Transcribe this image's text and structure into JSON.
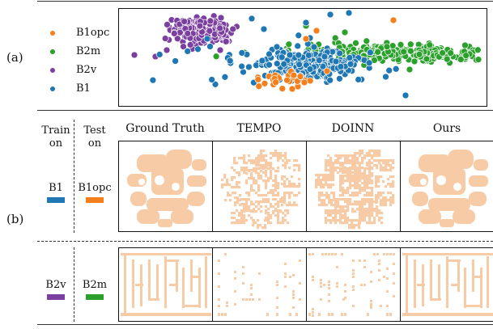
{
  "panel_a": {
    "label": "(a)",
    "legend": [
      {
        "name": "B1opc",
        "color": "#f57f1b"
      },
      {
        "name": "B2m",
        "color": "#2ca02c"
      },
      {
        "name": "B2v",
        "color": "#7b3fa0"
      },
      {
        "name": "B1",
        "color": "#1f77b4"
      }
    ],
    "chart_data": {
      "type": "scatter",
      "title": "",
      "xlabel": "",
      "ylabel": "",
      "legend_position": "left",
      "axes_ticks": false,
      "series": [
        {
          "name": "B1opc",
          "color": "#f57f1b",
          "description_region": "small cluster below-center and few isolated points"
        },
        {
          "name": "B2m",
          "color": "#2ca02c",
          "description_region": "dense elongated cluster on the right"
        },
        {
          "name": "B2v",
          "color": "#7b3fa0",
          "description_region": "dense cluster on upper-left"
        },
        {
          "name": "B1",
          "color": "#1f77b4",
          "description_region": "spread across center"
        }
      ]
    }
  },
  "panel_b": {
    "label": "(b)",
    "train_label": "Train on",
    "test_label": "Test on",
    "columns": [
      "Ground Truth",
      "TEMPO",
      "DOINN",
      "Ours"
    ],
    "rows": [
      {
        "train": "B1",
        "train_color": "#1f77b4",
        "test": "B1opc",
        "test_color": "#f57f1b"
      },
      {
        "train": "B2v",
        "train_color": "#7b3fa0",
        "test": "B2m",
        "test_color": "#2ca02c"
      }
    ],
    "fill_color": "#f8cba7"
  }
}
